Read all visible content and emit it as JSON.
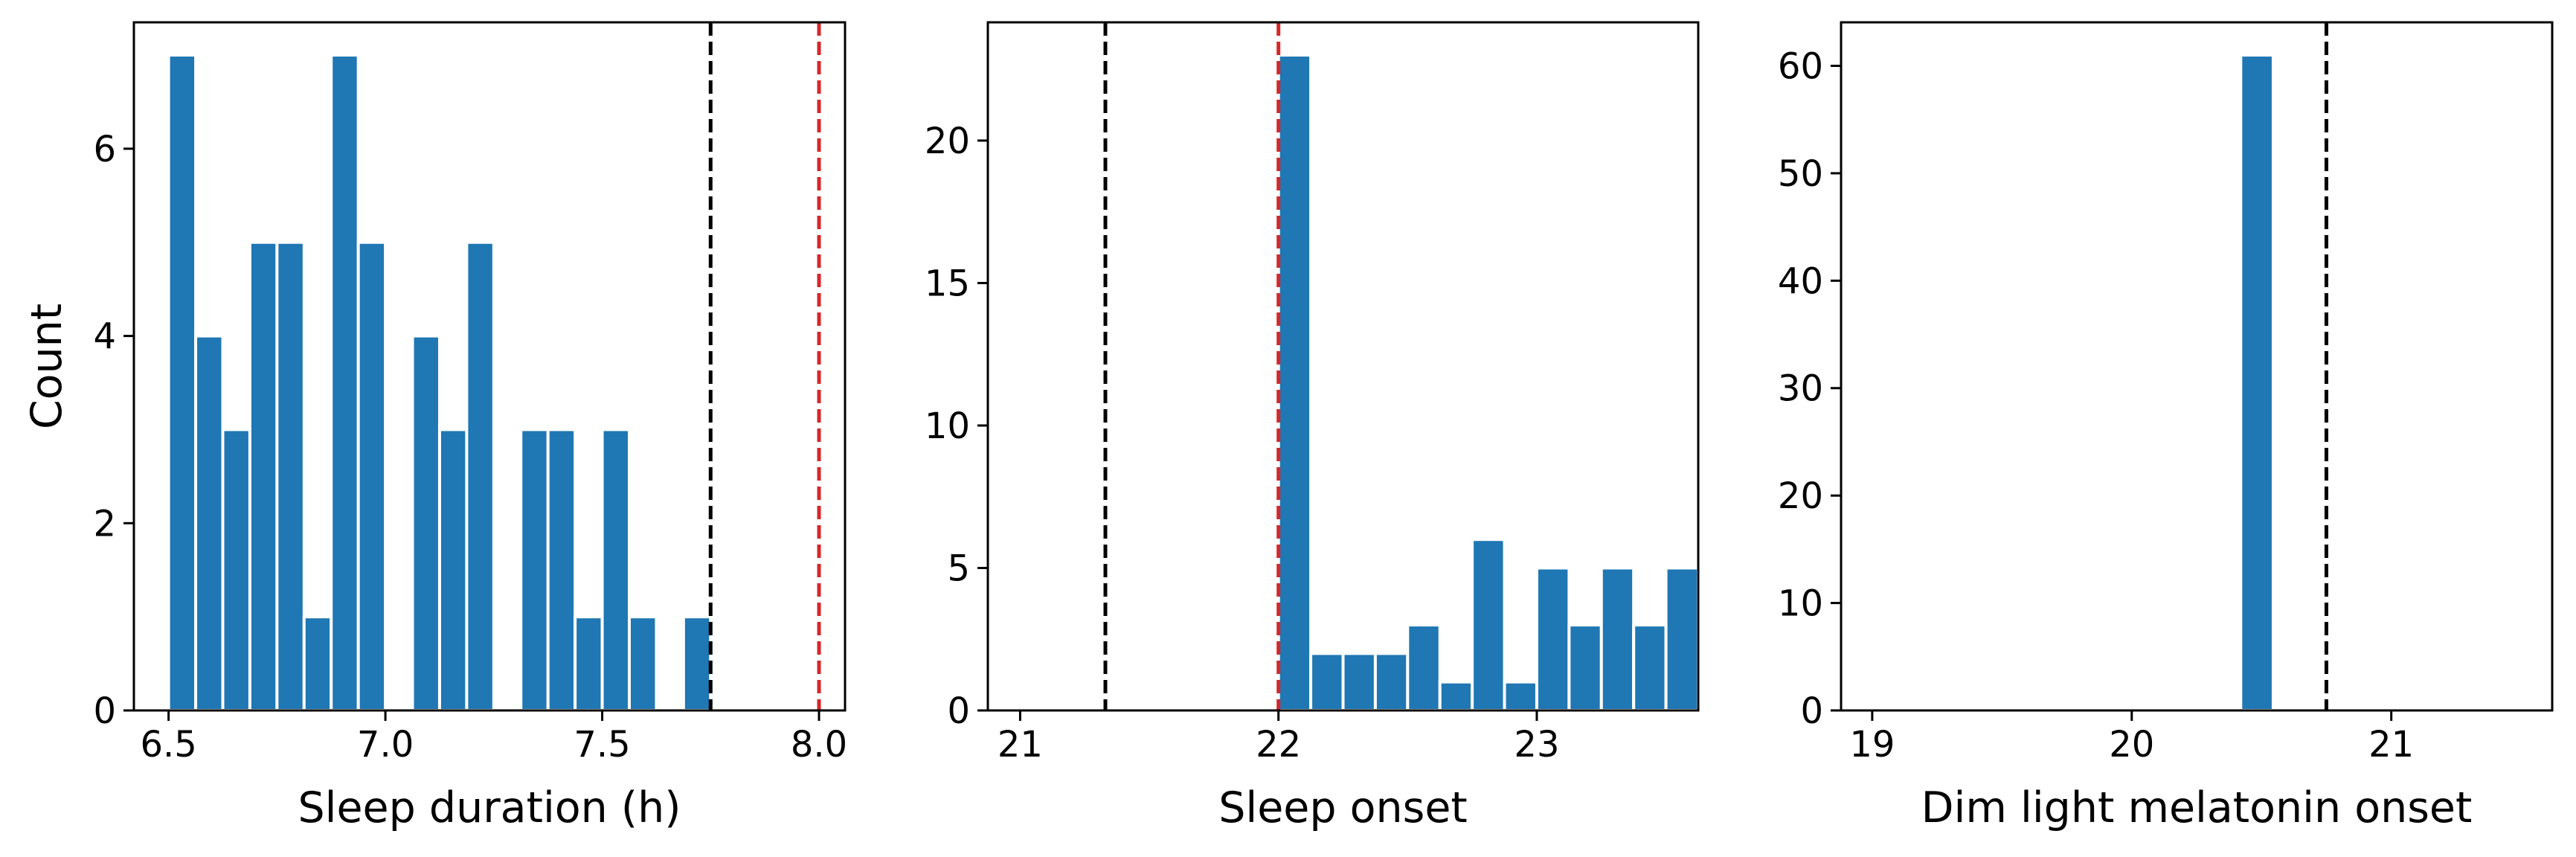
{
  "chart_data": [
    {
      "type": "bar",
      "xlabel": "Sleep duration (h)",
      "ylabel": "Count",
      "xlim": [
        6.42,
        8.06
      ],
      "ylim": [
        0,
        7.35
      ],
      "xticks": [
        6.5,
        7.0,
        7.5,
        8.0
      ],
      "xtick_labels": [
        "6.5",
        "7.0",
        "7.5",
        "8.0"
      ],
      "yticks": [
        0,
        2,
        4,
        6
      ],
      "ytick_labels": [
        "0",
        "2",
        "4",
        "6"
      ],
      "bin_width": 0.0625,
      "bins": [
        {
          "x": 6.5,
          "count": 7
        },
        {
          "x": 6.5625,
          "count": 4
        },
        {
          "x": 6.625,
          "count": 3
        },
        {
          "x": 6.6875,
          "count": 5
        },
        {
          "x": 6.75,
          "count": 5
        },
        {
          "x": 6.8125,
          "count": 1
        },
        {
          "x": 6.875,
          "count": 7
        },
        {
          "x": 6.9375,
          "count": 5
        },
        {
          "x": 7.0,
          "count": 0
        },
        {
          "x": 7.0625,
          "count": 4
        },
        {
          "x": 7.125,
          "count": 3
        },
        {
          "x": 7.1875,
          "count": 5
        },
        {
          "x": 7.25,
          "count": 0
        },
        {
          "x": 7.3125,
          "count": 3
        },
        {
          "x": 7.375,
          "count": 3
        },
        {
          "x": 7.4375,
          "count": 1
        },
        {
          "x": 7.5,
          "count": 3
        },
        {
          "x": 7.5625,
          "count": 1
        },
        {
          "x": 7.625,
          "count": 0
        },
        {
          "x": 7.6875,
          "count": 1
        }
      ],
      "reference_lines": [
        {
          "x": 7.75,
          "color": "#000000"
        },
        {
          "x": 8.0,
          "color": "#d62728"
        }
      ],
      "bar_color": "#1f77b4",
      "grid": false
    },
    {
      "type": "bar",
      "xlabel": "Sleep onset",
      "ylabel": "",
      "xlim": [
        20.875,
        23.625
      ],
      "ylim": [
        0,
        24.15
      ],
      "xticks": [
        21,
        22,
        23
      ],
      "xtick_labels": [
        "21",
        "22",
        "23"
      ],
      "yticks": [
        0,
        5,
        10,
        15,
        20
      ],
      "ytick_labels": [
        "0",
        "5",
        "10",
        "15",
        "20"
      ],
      "bin_width": 0.125,
      "bins": [
        {
          "x": 22.0,
          "count": 23
        },
        {
          "x": 22.125,
          "count": 2
        },
        {
          "x": 22.25,
          "count": 2
        },
        {
          "x": 22.375,
          "count": 2
        },
        {
          "x": 22.5,
          "count": 3
        },
        {
          "x": 22.625,
          "count": 1
        },
        {
          "x": 22.75,
          "count": 6
        },
        {
          "x": 22.875,
          "count": 1
        },
        {
          "x": 23.0,
          "count": 5
        },
        {
          "x": 23.125,
          "count": 3
        },
        {
          "x": 23.25,
          "count": 5
        },
        {
          "x": 23.375,
          "count": 3
        },
        {
          "x": 23.5,
          "count": 5
        }
      ],
      "reference_lines": [
        {
          "x": 21.33,
          "color": "#000000"
        },
        {
          "x": 22.0,
          "color": "#d62728"
        }
      ],
      "bar_color": "#1f77b4",
      "grid": false
    },
    {
      "type": "bar",
      "xlabel": "Dim light melatonin onset",
      "ylabel": "",
      "xlim": [
        18.88,
        21.62
      ],
      "ylim": [
        0,
        64.05
      ],
      "xticks": [
        19,
        20,
        21
      ],
      "xtick_labels": [
        "19",
        "20",
        "21"
      ],
      "yticks": [
        0,
        10,
        20,
        30,
        40,
        50,
        60
      ],
      "ytick_labels": [
        "0",
        "10",
        "20",
        "30",
        "40",
        "50",
        "60"
      ],
      "bin_width": 0.125,
      "bins": [
        {
          "x": 20.42,
          "count": 61
        }
      ],
      "reference_lines": [
        {
          "x": 20.75,
          "color": "#000000"
        }
      ],
      "bar_color": "#1f77b4",
      "grid": false
    }
  ]
}
